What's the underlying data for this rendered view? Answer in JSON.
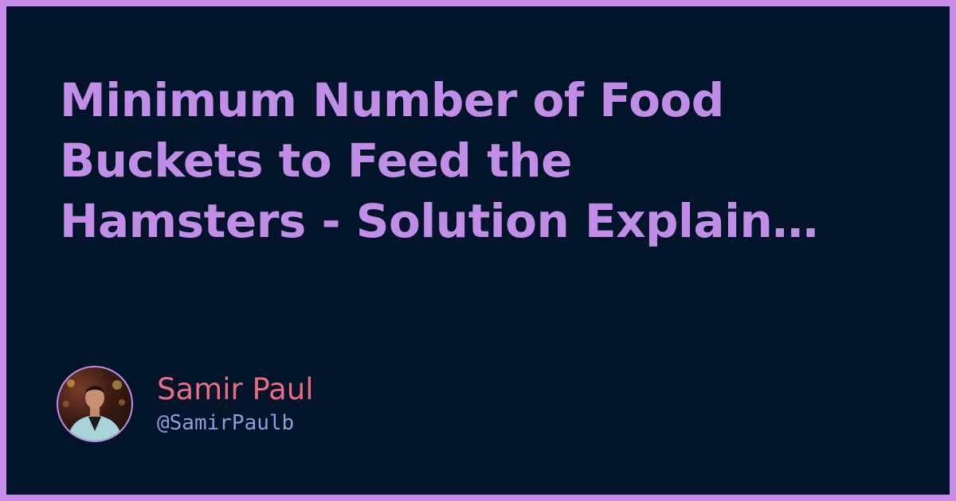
{
  "title": {
    "lines": [
      "Minimum Number of Food",
      "Buckets to Feed the",
      "Hamsters - Solution Explain…"
    ]
  },
  "author": {
    "name": "Samir Paul",
    "handle": "@SamirPaulb",
    "avatar_icon": "profile-photo"
  },
  "colors": {
    "frame": "#c88ce8",
    "background": "#02142a",
    "title": "#c28de6",
    "name": "#ec6c7c",
    "handle": "#8f9fdc"
  }
}
